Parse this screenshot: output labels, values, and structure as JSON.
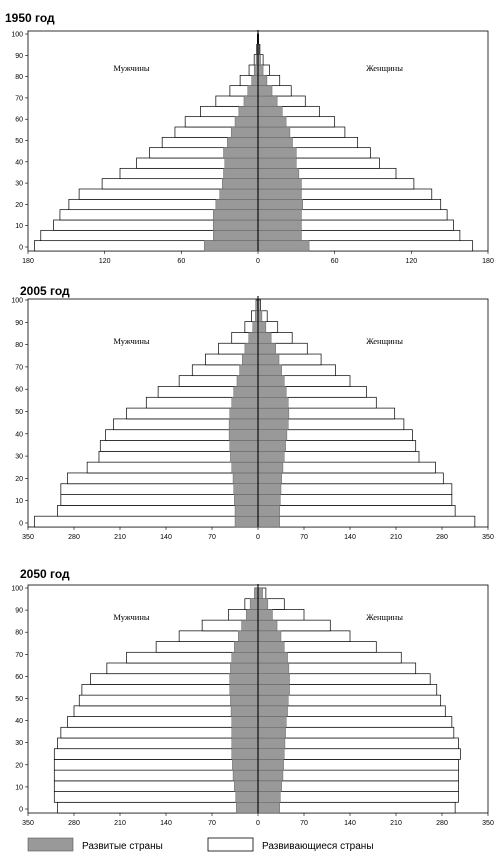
{
  "legend": {
    "developed_label": "Развитые страны",
    "developing_label": "Развивающиеся страны",
    "developed_color": "#999999",
    "developing_color": "#ffffff"
  },
  "chart_data": [
    {
      "type": "bar",
      "title": "1950 год",
      "male_label": "Мужчины",
      "female_label": "Женщины",
      "y_ticks": [
        "0",
        "10",
        "20",
        "30",
        "40",
        "50",
        "60",
        "70",
        "80",
        "90",
        "100"
      ],
      "x_tick_labels": [
        "180",
        "120",
        "60",
        "0",
        "60",
        "120",
        "180"
      ],
      "xlim": [
        -180,
        180
      ],
      "age_groups": [
        0,
        5,
        10,
        15,
        20,
        25,
        30,
        35,
        40,
        45,
        50,
        55,
        60,
        65,
        70,
        75,
        80,
        85,
        90,
        95,
        100
      ],
      "series": [
        {
          "name": "Развитые страны",
          "male": [
            -42,
            -35,
            -35,
            -35,
            -33,
            -30,
            -28,
            -27,
            -26,
            -27,
            -24,
            -21,
            -18,
            -15,
            -11,
            -8,
            -5,
            -3,
            -1.5,
            -0.5,
            -0.2
          ],
          "female": [
            40,
            34,
            34,
            34,
            35,
            34,
            34,
            32,
            30,
            30,
            27,
            25,
            22,
            19,
            15,
            11,
            7,
            4,
            2,
            1,
            0.3
          ]
        },
        {
          "name": "Развивающиеся страны",
          "male": [
            -175,
            -170,
            -160,
            -155,
            -148,
            -140,
            -122,
            -108,
            -95,
            -85,
            -75,
            -65,
            -57,
            -45,
            -33,
            -22,
            -14,
            -7,
            -3,
            -1,
            -0.5
          ],
          "female": [
            168,
            158,
            153,
            148,
            143,
            136,
            122,
            108,
            95,
            88,
            78,
            68,
            60,
            48,
            37,
            26,
            17,
            9,
            4,
            1.5,
            0.5
          ]
        }
      ]
    },
    {
      "type": "bar",
      "title": "2005 год",
      "male_label": "Мужчины",
      "female_label": "Женщины",
      "y_ticks": [
        "0",
        "10",
        "20",
        "30",
        "40",
        "50",
        "60",
        "70",
        "80",
        "90",
        "100"
      ],
      "x_tick_labels": [
        "350",
        "280",
        "210",
        "140",
        "70",
        "0",
        "70",
        "140",
        "210",
        "280",
        "350"
      ],
      "xlim": [
        -350,
        350
      ],
      "age_groups": [
        0,
        5,
        10,
        15,
        20,
        25,
        30,
        35,
        40,
        45,
        50,
        55,
        60,
        65,
        70,
        75,
        80,
        85,
        90,
        95,
        100
      ],
      "series": [
        {
          "name": "Развитые страны",
          "male": [
            -35,
            -35,
            -36,
            -37,
            -38,
            -40,
            -42,
            -43,
            -44,
            -44,
            -43,
            -40,
            -37,
            -32,
            -28,
            -24,
            -20,
            -14,
            -8,
            -4,
            -1
          ],
          "female": [
            33,
            33,
            34,
            35,
            36,
            38,
            40,
            42,
            44,
            46,
            47,
            46,
            43,
            40,
            36,
            32,
            27,
            20,
            12,
            6,
            2
          ]
        },
        {
          "name": "Развивающиеся страны",
          "male": [
            -340,
            -305,
            -300,
            -300,
            -290,
            -260,
            -242,
            -240,
            -232,
            -220,
            -200,
            -170,
            -152,
            -120,
            -100,
            -80,
            -60,
            -40,
            -20,
            -10,
            -3
          ],
          "female": [
            330,
            300,
            295,
            295,
            282,
            270,
            245,
            240,
            235,
            222,
            208,
            180,
            165,
            140,
            118,
            96,
            75,
            52,
            30,
            14,
            4
          ]
        }
      ]
    },
    {
      "type": "bar",
      "title": "2050 год",
      "male_label": "Мужчины",
      "female_label": "Женщины",
      "y_ticks": [
        "0",
        "10",
        "20",
        "30",
        "40",
        "50",
        "60",
        "70",
        "80",
        "90",
        "100"
      ],
      "x_tick_labels": [
        "350",
        "280",
        "210",
        "140",
        "70",
        "0",
        "70",
        "140",
        "210",
        "280",
        "350"
      ],
      "xlim": [
        -350,
        350
      ],
      "age_groups": [
        0,
        5,
        10,
        15,
        20,
        25,
        30,
        35,
        40,
        45,
        50,
        55,
        60,
        65,
        70,
        75,
        80,
        85,
        90,
        95,
        100
      ],
      "series": [
        {
          "name": "Развитые страны",
          "male": [
            -33,
            -34,
            -36,
            -38,
            -39,
            -40,
            -40,
            -40,
            -40,
            -41,
            -42,
            -43,
            -43,
            -42,
            -40,
            -36,
            -30,
            -25,
            -18,
            -12,
            -5
          ],
          "female": [
            33,
            34,
            36,
            38,
            39,
            40,
            41,
            42,
            43,
            45,
            46,
            48,
            48,
            47,
            45,
            40,
            35,
            29,
            22,
            15,
            7
          ]
        },
        {
          "name": "Развивающиеся страны",
          "male": [
            -305,
            -310,
            -310,
            -310,
            -310,
            -310,
            -305,
            -300,
            -290,
            -280,
            -272,
            -268,
            -255,
            -230,
            -200,
            -155,
            -120,
            -85,
            -45,
            -20,
            -5
          ],
          "female": [
            300,
            305,
            305,
            305,
            305,
            308,
            305,
            298,
            295,
            285,
            278,
            272,
            262,
            240,
            218,
            180,
            140,
            110,
            70,
            40,
            12
          ]
        }
      ]
    }
  ]
}
